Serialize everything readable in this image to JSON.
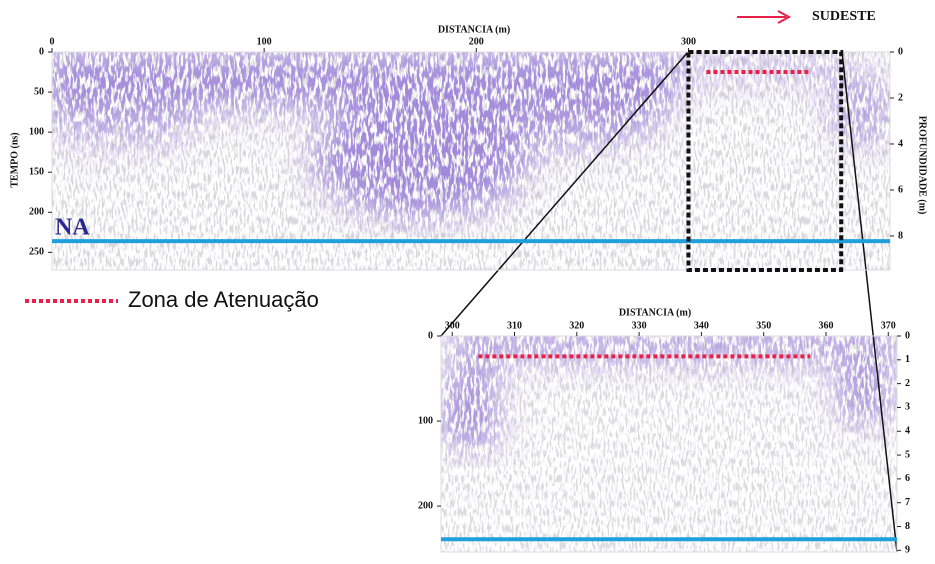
{
  "chart_data": [
    {
      "type": "radargram",
      "x_label": "DISTANCIA (m)",
      "y_label": "TEMPO (ns)",
      "y2_label": "PROFUNDIDADE (m)",
      "xlim": [
        0,
        395
      ],
      "xticks": [
        0,
        100,
        200,
        300
      ],
      "ylim": [
        0,
        272
      ],
      "yticks": [
        0,
        50,
        100,
        150,
        200,
        250
      ],
      "y2lim": [
        0,
        9.48
      ],
      "y2ticks": [
        0,
        2,
        4,
        6,
        8
      ],
      "water_table": {
        "label": "NA",
        "value": 236,
        "color": "#1fa0dc"
      },
      "attenuation": {
        "x": [
          308.5,
          357.5
        ],
        "y": 25,
        "color": "#e8204a"
      },
      "zoom_box": [
        300,
        372
      ]
    },
    {
      "type": "radargram",
      "x_label": "DISTANCIA (m)",
      "xlim": [
        298.2,
        371.4
      ],
      "xticks": [
        300,
        310,
        320,
        330,
        340,
        350,
        360,
        370
      ],
      "ylim": [
        0,
        254
      ],
      "yticks": [
        0,
        100,
        200
      ],
      "y2lim": [
        0,
        9.07
      ],
      "y2ticks": [
        0,
        1,
        2,
        3,
        4,
        5,
        6,
        7,
        8,
        9
      ],
      "water_table": {
        "value": 239,
        "color": "#1fa0dc"
      },
      "attenuation": {
        "x": [
          304.2,
          357.5
        ],
        "y": 24,
        "color": "#e8204a"
      }
    }
  ],
  "legend": {
    "label": "Zona de Atenuação",
    "color": "#e8204a"
  },
  "direction": {
    "label": "SUDESTE",
    "color": "#e8204a"
  }
}
